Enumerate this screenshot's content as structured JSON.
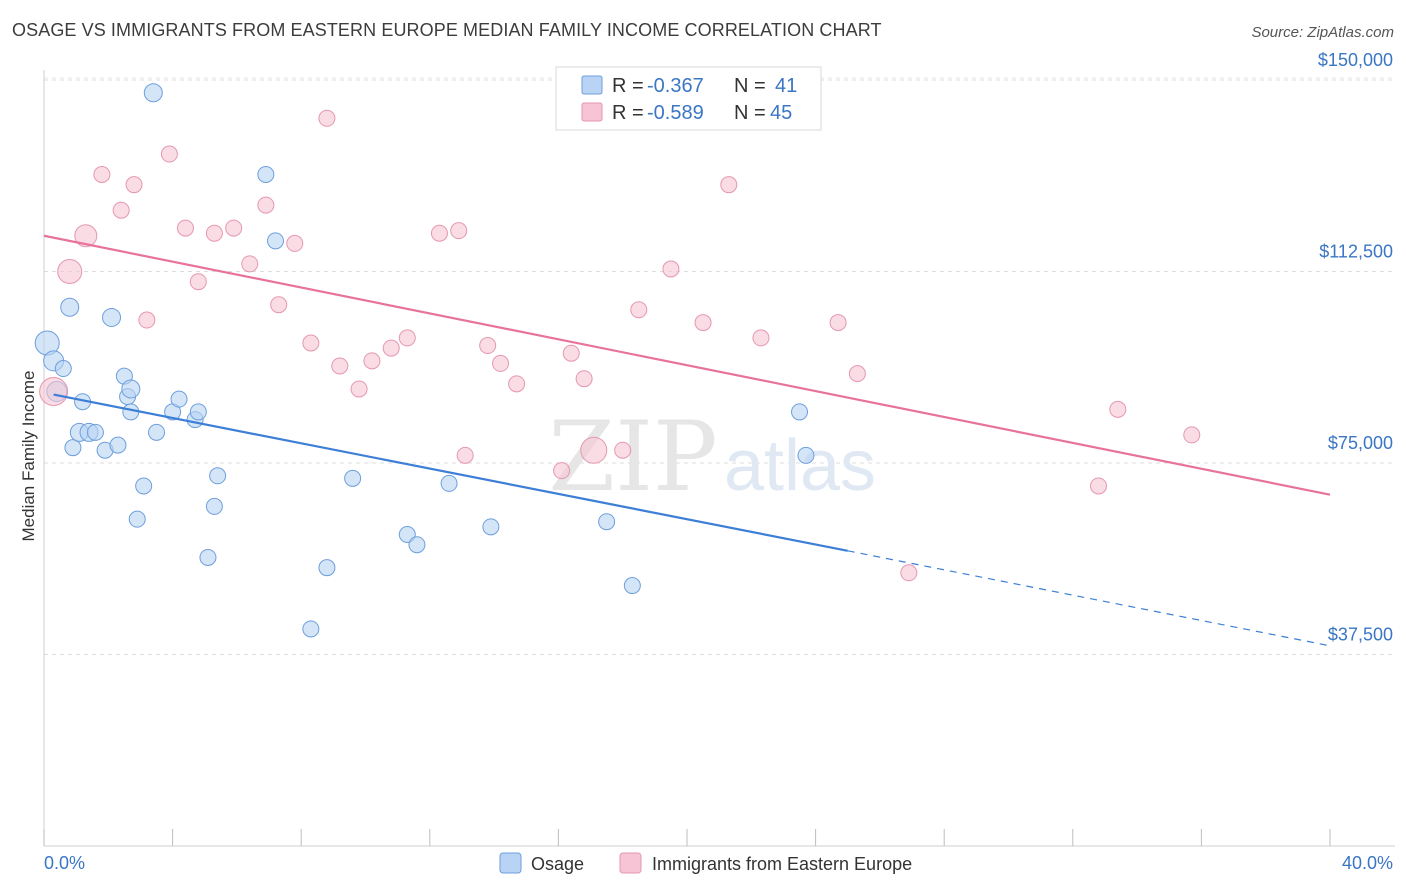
{
  "title": "OSAGE VS IMMIGRANTS FROM EASTERN EUROPE MEDIAN FAMILY INCOME CORRELATION CHART",
  "source": "Source: ZipAtlas.com",
  "colors": {
    "blue": "#3d7fd6",
    "pink": "#e8739a",
    "blue_fill": "#b8d3f3",
    "pink_fill": "#f6c4d4",
    "axis_text": "#3a76c4"
  },
  "chart_data": {
    "type": "scatter",
    "xlabel": "",
    "ylabel": "Median Family Income",
    "xlim": [
      0,
      40
    ],
    "ylim": [
      0,
      155000
    ],
    "x_tick_labels": [
      "0.0%",
      "40.0%"
    ],
    "y_ticks": [
      37500,
      75000,
      112500,
      150000
    ],
    "y_tick_labels": [
      "$37,500",
      "$75,000",
      "$112,500",
      "$150,000"
    ],
    "legend_box": {
      "rows": [
        {
          "r_label": "R =",
          "r_value": "-0.367",
          "n_label": "N =",
          "n_value": "41"
        },
        {
          "r_label": "R =",
          "r_value": "-0.589",
          "n_label": "N =",
          "n_value": "45"
        }
      ]
    },
    "series": [
      {
        "name": "Osage",
        "color": "#3d7fd6",
        "trend": {
          "x_start": 0.3,
          "y_start": 88400,
          "x_solid_end": 25.0,
          "y_solid_end": 57800,
          "x_end": 40.0,
          "y_end": 39200
        },
        "points": [
          [
            0.1,
            98500,
            12
          ],
          [
            0.3,
            95000,
            10
          ],
          [
            0.4,
            89000,
            10
          ],
          [
            0.6,
            93500,
            8
          ],
          [
            0.8,
            105500,
            9
          ],
          [
            0.9,
            78000,
            8
          ],
          [
            1.1,
            81000,
            9
          ],
          [
            1.2,
            87000,
            8
          ],
          [
            1.4,
            81000,
            9
          ],
          [
            1.6,
            81000,
            8
          ],
          [
            1.9,
            77500,
            8
          ],
          [
            2.1,
            103500,
            9
          ],
          [
            2.3,
            78500,
            8
          ],
          [
            2.5,
            92000,
            8
          ],
          [
            2.6,
            88000,
            8
          ],
          [
            2.7,
            89500,
            9
          ],
          [
            2.7,
            85000,
            8
          ],
          [
            2.9,
            64000,
            8
          ],
          [
            3.1,
            70500,
            8
          ],
          [
            3.5,
            81000,
            8
          ],
          [
            3.4,
            147500,
            9
          ],
          [
            4.0,
            85000,
            8
          ],
          [
            4.2,
            87500,
            8
          ],
          [
            4.7,
            83500,
            8
          ],
          [
            4.8,
            85000,
            8
          ],
          [
            5.1,
            56500,
            8
          ],
          [
            5.3,
            66500,
            8
          ],
          [
            5.4,
            72500,
            8
          ],
          [
            6.9,
            131500,
            8
          ],
          [
            7.2,
            118500,
            8
          ],
          [
            8.3,
            42500,
            8
          ],
          [
            8.8,
            54500,
            8
          ],
          [
            9.6,
            72000,
            8
          ],
          [
            11.3,
            61000,
            8
          ],
          [
            11.6,
            59000,
            8
          ],
          [
            12.6,
            71000,
            8
          ],
          [
            13.9,
            62500,
            8
          ],
          [
            17.5,
            63500,
            8
          ],
          [
            18.3,
            51000,
            8
          ],
          [
            23.5,
            85000,
            8
          ],
          [
            23.7,
            76500,
            8
          ]
        ]
      },
      {
        "name": "Immigrants from Eastern Europe",
        "color": "#e8739a",
        "trend": {
          "x_start": 0.0,
          "y_start": 119500,
          "x_end": 40.0,
          "y_end": 68800
        },
        "points": [
          [
            0.3,
            89000,
            14
          ],
          [
            0.8,
            112500,
            12
          ],
          [
            1.3,
            119500,
            11
          ],
          [
            1.8,
            131500,
            8
          ],
          [
            2.4,
            124500,
            8
          ],
          [
            2.8,
            129500,
            8
          ],
          [
            3.2,
            103000,
            8
          ],
          [
            3.9,
            135500,
            8
          ],
          [
            4.4,
            121000,
            8
          ],
          [
            4.8,
            110500,
            8
          ],
          [
            5.3,
            120000,
            8
          ],
          [
            5.9,
            121000,
            8
          ],
          [
            6.4,
            114000,
            8
          ],
          [
            6.9,
            125500,
            8
          ],
          [
            7.3,
            106000,
            8
          ],
          [
            7.8,
            118000,
            8
          ],
          [
            8.3,
            98500,
            8
          ],
          [
            8.8,
            142500,
            8
          ],
          [
            9.2,
            94000,
            8
          ],
          [
            9.8,
            89500,
            8
          ],
          [
            10.2,
            95000,
            8
          ],
          [
            10.8,
            97500,
            8
          ],
          [
            11.3,
            99500,
            8
          ],
          [
            12.3,
            120000,
            8
          ],
          [
            12.9,
            120500,
            8
          ],
          [
            13.1,
            76500,
            8
          ],
          [
            13.8,
            98000,
            8
          ],
          [
            14.2,
            94500,
            8
          ],
          [
            14.7,
            90500,
            8
          ],
          [
            16.1,
            73500,
            8
          ],
          [
            16.4,
            96500,
            8
          ],
          [
            16.8,
            91500,
            8
          ],
          [
            17.1,
            77500,
            13
          ],
          [
            18.0,
            77500,
            8
          ],
          [
            18.5,
            105000,
            8
          ],
          [
            19.5,
            113000,
            8
          ],
          [
            20.5,
            102500,
            8
          ],
          [
            21.3,
            129500,
            8
          ],
          [
            22.3,
            99500,
            8
          ],
          [
            24.7,
            102500,
            8
          ],
          [
            25.3,
            92500,
            8
          ],
          [
            26.9,
            53500,
            8
          ],
          [
            32.8,
            70500,
            8
          ],
          [
            33.4,
            85500,
            8
          ],
          [
            35.7,
            80500,
            8
          ]
        ]
      }
    ]
  }
}
